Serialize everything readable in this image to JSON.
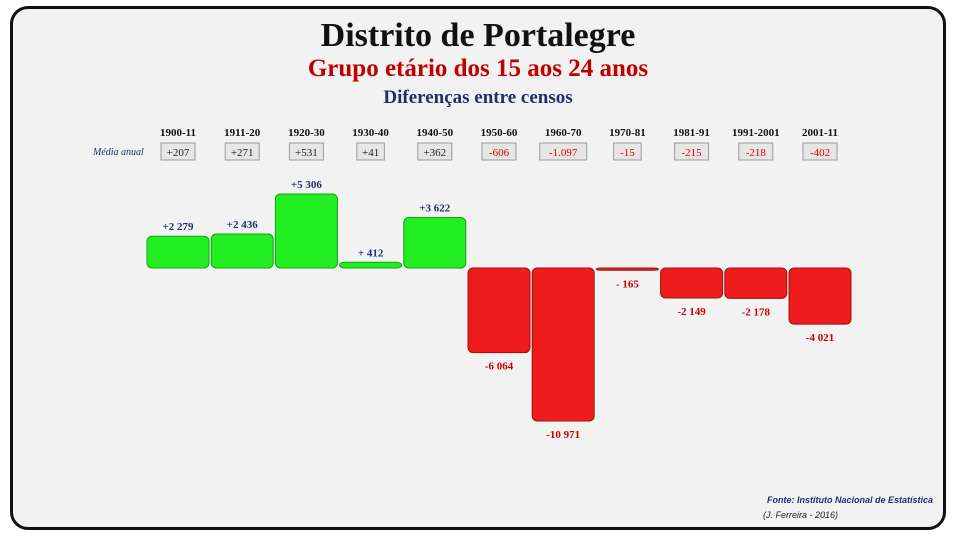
{
  "chart_data": {
    "type": "bar",
    "title": "Distrito de Portalegre",
    "subtitle": "Grupo etário dos 15 aos 24 anos",
    "subtitle2": "Diferenças entre censos",
    "row_label": "Média anual",
    "categories": [
      "1900-11",
      "1911-20",
      "1920-30",
      "1930-40",
      "1940-50",
      "1950-60",
      "1960-70",
      "1970-81",
      "1981-91",
      "1991-2001",
      "2001-11"
    ],
    "values": [
      2279,
      2436,
      5306,
      412,
      3622,
      -6064,
      -10971,
      -165,
      -2149,
      -2178,
      -4021
    ],
    "value_labels": [
      "+2 279",
      "+2 436",
      "+5 306",
      "+ 412",
      "+3 622",
      "-6 064",
      "-10 971",
      "- 165",
      "-2 149",
      "-2 178",
      "-4 021"
    ],
    "annual_means": [
      "+207",
      "+271",
      "+531",
      "+41",
      "+362",
      "-606",
      "-1.097",
      "-15",
      "-215",
      "-218",
      "-402"
    ],
    "colors": {
      "positive": "#22ee22",
      "negative": "#ee1c1c",
      "positive_label": "#1f2f6b",
      "negative_label": "#cc0000"
    }
  },
  "footer": {
    "source": "Fonte: Instituto Nacional de Estatística",
    "author": "(J. Ferreira - 2016)"
  }
}
